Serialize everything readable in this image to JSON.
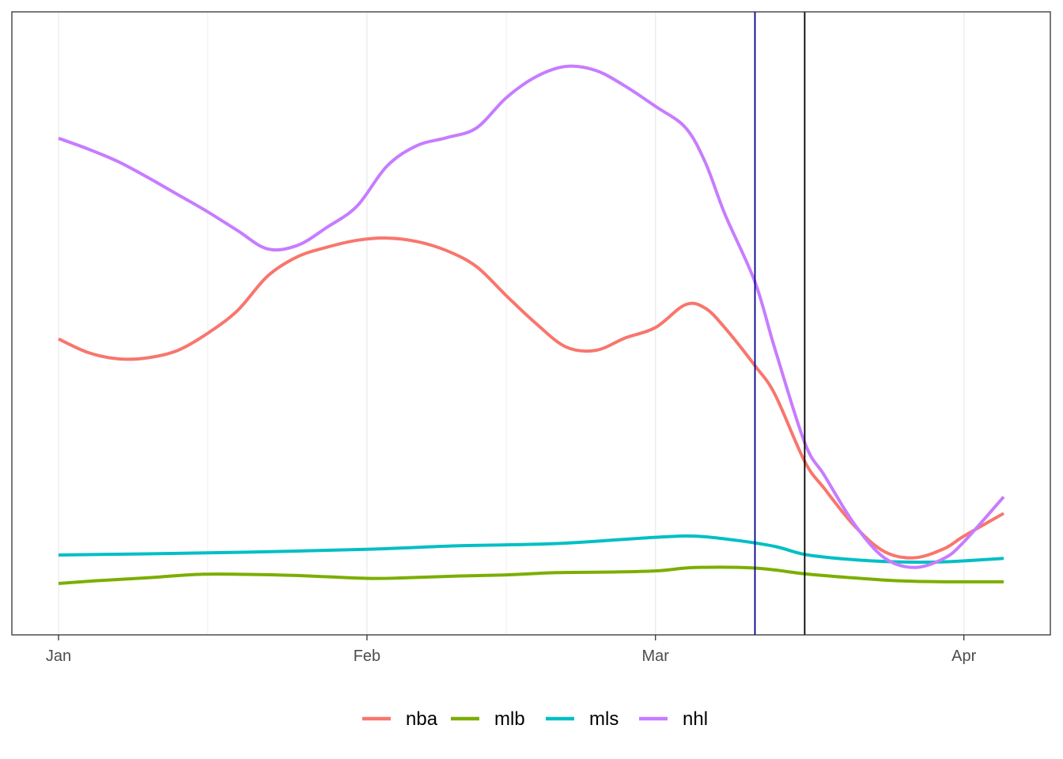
{
  "chart_data": {
    "type": "line",
    "title": "",
    "xlabel": "",
    "ylabel": "",
    "x_axis": {
      "type": "date",
      "range": [
        "2020-01-01",
        "2020-04-05"
      ],
      "ticks": [
        {
          "date": "2020-01-01",
          "label": "Jan"
        },
        {
          "date": "2020-02-01",
          "label": "Feb"
        },
        {
          "date": "2020-03-01",
          "label": "Mar"
        },
        {
          "date": "2020-04-01",
          "label": "Apr"
        }
      ],
      "minor_grid_dates": [
        "2020-01-16",
        "2020-02-15",
        "2020-03-16"
      ]
    },
    "y_axis": {
      "range": [
        0,
        100
      ],
      "tick_labels_shown": false
    },
    "grid": "vertical",
    "legend_position": "bottom",
    "reference_lines": [
      {
        "date": "2020-03-11",
        "color": "#00008b"
      },
      {
        "date": "2020-03-16",
        "color": "#000000"
      }
    ],
    "series": [
      {
        "name": "nba",
        "color": "#F8766D",
        "points": [
          [
            "2020-01-01",
            47.2
          ],
          [
            "2020-01-04",
            44.8
          ],
          [
            "2020-01-07",
            43.7
          ],
          [
            "2020-01-10",
            43.9
          ],
          [
            "2020-01-13",
            45.2
          ],
          [
            "2020-01-16",
            48.2
          ],
          [
            "2020-01-19",
            52.2
          ],
          [
            "2020-01-22",
            58.2
          ],
          [
            "2020-01-25",
            61.6
          ],
          [
            "2020-01-28",
            63.3
          ],
          [
            "2020-01-31",
            64.5
          ],
          [
            "2020-02-03",
            64.9
          ],
          [
            "2020-02-06",
            64.3
          ],
          [
            "2020-02-09",
            62.7
          ],
          [
            "2020-02-12",
            59.9
          ],
          [
            "2020-02-15",
            54.8
          ],
          [
            "2020-02-18",
            49.9
          ],
          [
            "2020-02-21",
            45.8
          ],
          [
            "2020-02-24",
            45.2
          ],
          [
            "2020-02-27",
            47.4
          ],
          [
            "2020-03-01",
            49.2
          ],
          [
            "2020-03-04",
            53.2
          ],
          [
            "2020-03-06",
            52.6
          ],
          [
            "2020-03-08",
            49.1
          ],
          [
            "2020-03-11",
            42.5
          ],
          [
            "2020-03-13",
            37.5
          ],
          [
            "2020-03-16",
            25.7
          ],
          [
            "2020-03-18",
            20.9
          ],
          [
            "2020-03-21",
            14.4
          ],
          [
            "2020-03-24",
            9.9
          ],
          [
            "2020-03-27",
            8.8
          ],
          [
            "2020-03-30",
            10.4
          ],
          [
            "2020-04-01",
            12.6
          ],
          [
            "2020-04-05",
            16.6
          ]
        ]
      },
      {
        "name": "mlb",
        "color": "#7CAE00",
        "points": [
          [
            "2020-01-01",
            4.3
          ],
          [
            "2020-01-05",
            4.8
          ],
          [
            "2020-01-10",
            5.3
          ],
          [
            "2020-01-15",
            5.9
          ],
          [
            "2020-01-20",
            5.9
          ],
          [
            "2020-01-25",
            5.7
          ],
          [
            "2020-02-01",
            5.2
          ],
          [
            "2020-02-05",
            5.3
          ],
          [
            "2020-02-10",
            5.6
          ],
          [
            "2020-02-15",
            5.8
          ],
          [
            "2020-02-20",
            6.2
          ],
          [
            "2020-02-25",
            6.3
          ],
          [
            "2020-03-01",
            6.5
          ],
          [
            "2020-03-05",
            7.1
          ],
          [
            "2020-03-11",
            7.0
          ],
          [
            "2020-03-16",
            6.0
          ],
          [
            "2020-03-20",
            5.4
          ],
          [
            "2020-03-25",
            4.8
          ],
          [
            "2020-03-30",
            4.6
          ],
          [
            "2020-04-05",
            4.6
          ]
        ]
      },
      {
        "name": "mls",
        "color": "#00BFC4",
        "points": [
          [
            "2020-01-01",
            9.3
          ],
          [
            "2020-01-10",
            9.5
          ],
          [
            "2020-01-20",
            9.8
          ],
          [
            "2020-02-01",
            10.3
          ],
          [
            "2020-02-10",
            10.9
          ],
          [
            "2020-02-20",
            11.3
          ],
          [
            "2020-03-01",
            12.4
          ],
          [
            "2020-03-05",
            12.6
          ],
          [
            "2020-03-09",
            11.9
          ],
          [
            "2020-03-13",
            10.8
          ],
          [
            "2020-03-16",
            9.4
          ],
          [
            "2020-03-20",
            8.6
          ],
          [
            "2020-03-25",
            8.1
          ],
          [
            "2020-03-30",
            8.1
          ],
          [
            "2020-04-05",
            8.7
          ]
        ]
      },
      {
        "name": "nhl",
        "color": "#C77CFF",
        "points": [
          [
            "2020-01-01",
            82.4
          ],
          [
            "2020-01-04",
            80.5
          ],
          [
            "2020-01-07",
            78.3
          ],
          [
            "2020-01-10",
            75.5
          ],
          [
            "2020-01-13",
            72.5
          ],
          [
            "2020-01-16",
            69.5
          ],
          [
            "2020-01-19",
            66.2
          ],
          [
            "2020-01-22",
            63.0
          ],
          [
            "2020-01-25",
            63.6
          ],
          [
            "2020-01-28",
            66.8
          ],
          [
            "2020-01-31",
            70.5
          ],
          [
            "2020-02-03",
            77.5
          ],
          [
            "2020-02-06",
            81.1
          ],
          [
            "2020-02-09",
            82.5
          ],
          [
            "2020-02-12",
            84.2
          ],
          [
            "2020-02-15",
            89.5
          ],
          [
            "2020-02-18",
            93.2
          ],
          [
            "2020-02-21",
            95.0
          ],
          [
            "2020-02-24",
            94.3
          ],
          [
            "2020-02-27",
            91.5
          ],
          [
            "2020-03-01",
            88.0
          ],
          [
            "2020-03-04",
            84.3
          ],
          [
            "2020-03-06",
            78.2
          ],
          [
            "2020-03-08",
            69.0
          ],
          [
            "2020-03-11",
            57.2
          ],
          [
            "2020-03-13",
            45.5
          ],
          [
            "2020-03-16",
            29.0
          ],
          [
            "2020-03-18",
            23.2
          ],
          [
            "2020-03-21",
            14.7
          ],
          [
            "2020-03-24",
            8.8
          ],
          [
            "2020-03-27",
            7.1
          ],
          [
            "2020-03-30",
            8.7
          ],
          [
            "2020-04-01",
            11.6
          ],
          [
            "2020-04-05",
            19.5
          ]
        ]
      }
    ]
  }
}
